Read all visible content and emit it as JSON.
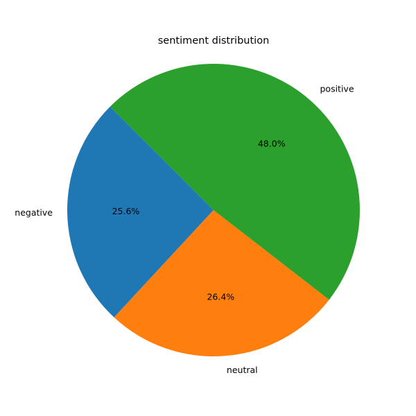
{
  "chart_data": {
    "type": "pie",
    "title": "sentiment distribution",
    "categories": [
      "negative",
      "neutral",
      "positive"
    ],
    "values": [
      25.6,
      26.4,
      48.0
    ],
    "value_labels": [
      "25.6%",
      "26.4%",
      "48.0%"
    ],
    "colors": [
      "#1f77b4",
      "#ff7f0e",
      "#2ca02c"
    ],
    "start_angle_deg": 135,
    "direction": "counterclockwise",
    "legend": "none"
  }
}
